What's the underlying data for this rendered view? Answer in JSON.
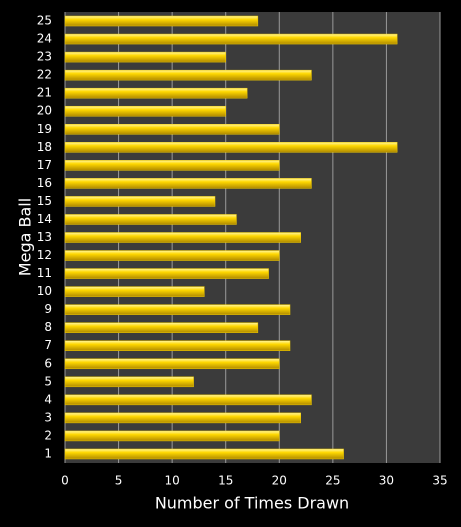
{
  "chart_data": {
    "type": "bar",
    "orientation": "horizontal",
    "x_label": "Number of Times Drawn",
    "y_label": "Mega Ball",
    "categories": [
      "1",
      "2",
      "3",
      "4",
      "5",
      "6",
      "7",
      "8",
      "9",
      "10",
      "11",
      "12",
      "13",
      "14",
      "15",
      "16",
      "17",
      "18",
      "19",
      "20",
      "21",
      "22",
      "23",
      "24",
      "25"
    ],
    "values": [
      26,
      20,
      22,
      23,
      12,
      20,
      21,
      18,
      21,
      13,
      19,
      20,
      22,
      16,
      14,
      23,
      20,
      31,
      20,
      15,
      17,
      23,
      15,
      31,
      18
    ],
    "color": "#f2cc00",
    "xlim": [
      0,
      35
    ],
    "xticks": [
      0,
      5,
      10,
      15,
      20,
      25,
      30,
      35
    ],
    "grid": true
  }
}
